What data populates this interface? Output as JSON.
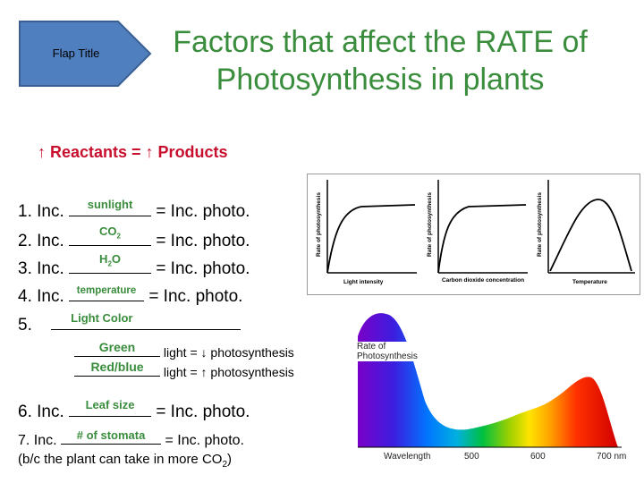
{
  "flap": {
    "label": "Flap Title"
  },
  "title": {
    "line1": "Factors that affect the RATE of",
    "line2": "Photosynthesis in plants"
  },
  "reactants": "↑ Reactants = ↑ Products",
  "items": [
    {
      "num": "1. Inc.",
      "fill": "sunlight",
      "rest": "= Inc. photo."
    },
    {
      "num": "2. Inc.",
      "fill": "CO",
      "fill_sub": "2",
      "rest": "= Inc. photo."
    },
    {
      "num": "3. Inc.",
      "fill": "H",
      "fill_sub": "2",
      "fill_after": "O",
      "rest": "= Inc. photo."
    },
    {
      "num": "4. Inc.",
      "fill": "temperature",
      "rest": "= Inc. photo."
    },
    {
      "num": "5.",
      "fill": "Light Color"
    },
    {
      "num": "6. Inc.",
      "fill": "Leaf size",
      "rest": "= Inc. photo."
    },
    {
      "num": "7. Inc.",
      "fill": "# of stomata",
      "rest": "= Inc. photo."
    }
  ],
  "light_color": [
    {
      "fill": "Green",
      "rest": "light = ↓ photosynthesis"
    },
    {
      "fill": "Red/blue",
      "rest": "light = ↑ photosynthesis"
    }
  ],
  "note": {
    "text": "(b/c the plant can take in more CO",
    "sub": "2",
    "close": ")"
  },
  "graphs": [
    {
      "ylabel": "Rate of photosynthesis",
      "xlabel": "Light intensity"
    },
    {
      "ylabel": "Rate of photosynthesis",
      "xlabel": "Carbon dioxide concentration"
    },
    {
      "ylabel": "Rate of photosynthesis",
      "xlabel": "Temperature"
    }
  ],
  "spectrum": {
    "ylabel_line1": "Rate of",
    "ylabel_line2": "Photosynthesis",
    "xlabel": "Wavelength",
    "ticks": [
      "500",
      "600",
      "700 nm"
    ]
  },
  "colors": {
    "title_green": "#3a8d3c",
    "fill_green": "#3a8d3c",
    "red": "#c8102e",
    "flap_blue": "#4f7fbf"
  }
}
